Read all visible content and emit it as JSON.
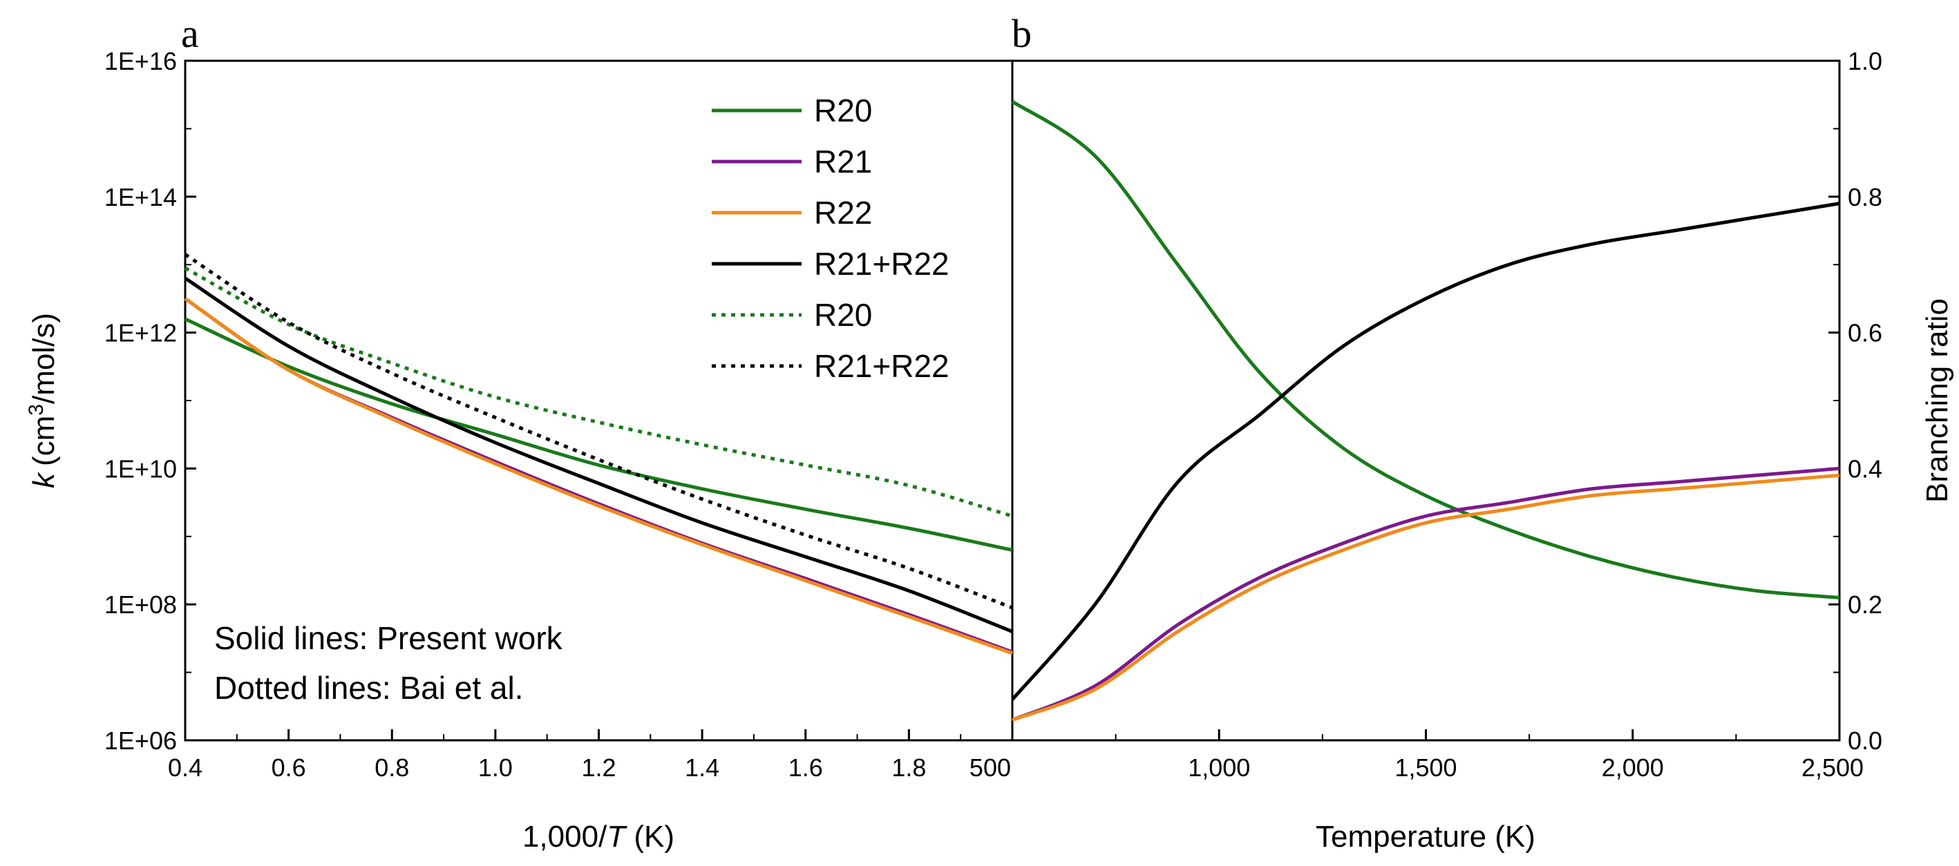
{
  "chart_data": [
    {
      "panel": "a",
      "type": "line",
      "xlabel": "1,000/T (K)",
      "ylabel": "k (cm3/mol/s)",
      "yscale": "log",
      "xlim": [
        0.4,
        2.0
      ],
      "ylim": [
        1000000.0,
        1e+16
      ],
      "x_ticks": [
        "0.4",
        "0.6",
        "0.8",
        "1.0",
        "1.2",
        "1.4",
        "1.6",
        "1.8"
      ],
      "y_ticks": [
        "1E+16",
        "1E+14",
        "1E+12",
        "1E+10",
        "1E+08",
        "1E+06"
      ],
      "x": [
        0.4,
        0.6,
        0.8,
        1.0,
        1.2,
        1.4,
        1.6,
        1.8,
        2.0
      ],
      "series": [
        {
          "name": "R20",
          "style": "solid",
          "color": "#1a7a1a",
          "log10_values": [
            12.2,
            11.5,
            10.95,
            10.5,
            10.05,
            9.7,
            9.4,
            9.12,
            8.8
          ]
        },
        {
          "name": "R21",
          "style": "solid",
          "color": "#7b1a8c",
          "log10_values": [
            12.5,
            11.45,
            10.75,
            10.1,
            9.48,
            8.9,
            8.38,
            7.85,
            7.3
          ]
        },
        {
          "name": "R22",
          "style": "solid",
          "color": "#f08a1c",
          "log10_values": [
            12.5,
            11.45,
            10.73,
            10.07,
            9.45,
            8.88,
            8.35,
            7.82,
            7.28
          ]
        },
        {
          "name": "R21+R22",
          "style": "solid",
          "color": "#000000",
          "log10_values": [
            12.8,
            11.8,
            11.05,
            10.38,
            9.78,
            9.2,
            8.7,
            8.2,
            7.6
          ]
        },
        {
          "name": "R20",
          "style": "dotted",
          "color": "#1a7a1a",
          "log10_values": [
            12.95,
            12.12,
            11.55,
            11.05,
            10.68,
            10.35,
            10.05,
            9.75,
            9.3
          ]
        },
        {
          "name": "R21+R22",
          "style": "dotted",
          "color": "#000000",
          "log10_values": [
            13.15,
            12.15,
            11.4,
            10.75,
            10.13,
            9.55,
            9.02,
            8.53,
            7.95
          ]
        }
      ],
      "legend": [
        "R20",
        "R21",
        "R22",
        "R21+R22",
        "R20",
        "R21+R22"
      ],
      "annotations": [
        "Solid lines: Present work",
        "Dotted lines: Bai et al."
      ]
    },
    {
      "panel": "b",
      "type": "line",
      "xlabel": "Temperature (K)",
      "ylabel": "Branching ratio",
      "xlim": [
        500,
        2500
      ],
      "ylim": [
        0.0,
        1.0
      ],
      "x_ticks": [
        "500",
        "1,000",
        "1,500",
        "2,000",
        "2,500"
      ],
      "y_ticks": [
        "1.0",
        "0.8",
        "0.6",
        "0.4",
        "0.2",
        "0.0"
      ],
      "x": [
        500,
        700,
        900,
        1100,
        1300,
        1500,
        1700,
        1900,
        2100,
        2300,
        2500
      ],
      "series": [
        {
          "name": "R20",
          "color": "#1a7a1a",
          "values": [
            0.94,
            0.86,
            0.7,
            0.54,
            0.43,
            0.36,
            0.31,
            0.27,
            0.24,
            0.22,
            0.21
          ]
        },
        {
          "name": "R21",
          "color": "#7b1a8c",
          "values": [
            0.03,
            0.08,
            0.17,
            0.24,
            0.29,
            0.33,
            0.35,
            0.37,
            0.38,
            0.39,
            0.4
          ]
        },
        {
          "name": "R22",
          "color": "#f08a1c",
          "values": [
            0.03,
            0.075,
            0.16,
            0.23,
            0.28,
            0.32,
            0.34,
            0.36,
            0.37,
            0.38,
            0.39
          ]
        },
        {
          "name": "R21+R22",
          "color": "#000000",
          "values": [
            0.06,
            0.2,
            0.38,
            0.48,
            0.58,
            0.65,
            0.7,
            0.73,
            0.75,
            0.77,
            0.79
          ]
        }
      ]
    }
  ],
  "labels": {
    "panel_a": "a",
    "panel_b": "b",
    "a_ylabel_k": "k",
    "a_ylabel_units": "(cm",
    "a_ylabel_sup": "3",
    "a_ylabel_rest": "/mol/s)",
    "a_xlabel_prefix": "1,000/",
    "a_xlabel_T": "T",
    "a_xlabel_suffix": " (K)",
    "b_xlabel": "Temperature (K)",
    "b_ylabel": "Branching ratio",
    "note1": "Solid lines: Present work",
    "note2": "Dotted lines: Bai et al."
  }
}
